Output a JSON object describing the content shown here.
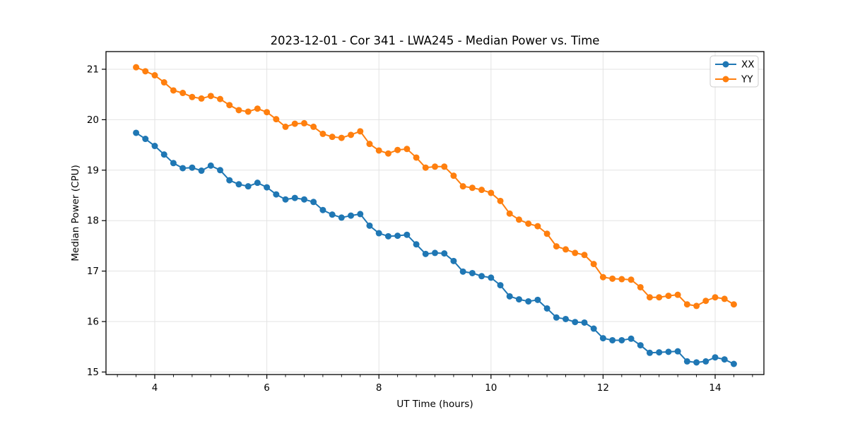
{
  "window": {
    "background_color": "#ffffff"
  },
  "chart_data": {
    "type": "line",
    "title": "2023-12-01 - Cor 341 - LWA245 - Median Power vs. Time",
    "xlabel": "UT Time (hours)",
    "ylabel": "Median Power (CPU)",
    "xlim": [
      3.13,
      14.87
    ],
    "ylim": [
      14.95,
      21.35
    ],
    "x_ticks": [
      4,
      6,
      8,
      10,
      12,
      14
    ],
    "y_ticks": [
      15,
      16,
      17,
      18,
      19,
      20,
      21
    ],
    "x_minor_tick_step": 0.33333,
    "grid": true,
    "grid_color": "#e3e3e3",
    "spine_color": "#000000",
    "legend_position": "upper right",
    "x": [
      3.667,
      3.833,
      4.0,
      4.167,
      4.333,
      4.5,
      4.667,
      4.833,
      5.0,
      5.167,
      5.333,
      5.5,
      5.667,
      5.833,
      6.0,
      6.167,
      6.333,
      6.5,
      6.667,
      6.833,
      7.0,
      7.167,
      7.333,
      7.5,
      7.667,
      7.833,
      8.0,
      8.167,
      8.333,
      8.5,
      8.667,
      8.833,
      9.0,
      9.167,
      9.333,
      9.5,
      9.667,
      9.833,
      10.0,
      10.167,
      10.333,
      10.5,
      10.667,
      10.833,
      11.0,
      11.167,
      11.333,
      11.5,
      11.667,
      11.833,
      12.0,
      12.167,
      12.333,
      12.5,
      12.667,
      12.833,
      13.0,
      13.167,
      13.333,
      13.5,
      13.667,
      13.833,
      14.0,
      14.167,
      14.333
    ],
    "series": [
      {
        "name": "XX",
        "color": "#1f77b4",
        "values": [
          19.74,
          19.62,
          19.48,
          19.31,
          19.14,
          19.04,
          19.05,
          18.99,
          19.09,
          19.0,
          18.8,
          18.72,
          18.68,
          18.75,
          18.66,
          18.52,
          18.42,
          18.45,
          18.42,
          18.37,
          18.21,
          18.12,
          18.06,
          18.1,
          18.13,
          17.9,
          17.75,
          17.69,
          17.7,
          17.72,
          17.53,
          17.34,
          17.36,
          17.35,
          17.2,
          16.99,
          16.96,
          16.9,
          16.87,
          16.72,
          16.5,
          16.44,
          16.4,
          16.43,
          16.26,
          16.08,
          16.05,
          15.99,
          15.98,
          15.86,
          15.67,
          15.63,
          15.63,
          15.66,
          15.53,
          15.38,
          15.39,
          15.4,
          15.41,
          15.21,
          15.19,
          15.21,
          15.29,
          15.25,
          15.16
        ]
      },
      {
        "name": "YY",
        "color": "#ff7f0e",
        "values": [
          21.04,
          20.96,
          20.88,
          20.74,
          20.58,
          20.53,
          20.45,
          20.42,
          20.47,
          20.41,
          20.29,
          20.19,
          20.16,
          20.22,
          20.15,
          20.01,
          19.86,
          19.92,
          19.93,
          19.86,
          19.72,
          19.66,
          19.64,
          19.7,
          19.77,
          19.52,
          19.39,
          19.33,
          19.4,
          19.42,
          19.25,
          19.05,
          19.07,
          19.07,
          18.89,
          18.68,
          18.65,
          18.61,
          18.55,
          18.39,
          18.14,
          18.02,
          17.94,
          17.89,
          17.74,
          17.49,
          17.43,
          17.36,
          17.32,
          17.14,
          16.88,
          16.85,
          16.84,
          16.83,
          16.68,
          16.48,
          16.48,
          16.51,
          16.53,
          16.34,
          16.31,
          16.41,
          16.48,
          16.45,
          16.34
        ]
      }
    ],
    "legend": {
      "entries": [
        {
          "label": "XX",
          "color": "#1f77b4"
        },
        {
          "label": "YY",
          "color": "#ff7f0e"
        }
      ],
      "border_color": "#cccccc",
      "background_color": "#ffffff"
    },
    "marker": {
      "shape": "circle",
      "radius": 4.5
    },
    "line_width": 2
  }
}
